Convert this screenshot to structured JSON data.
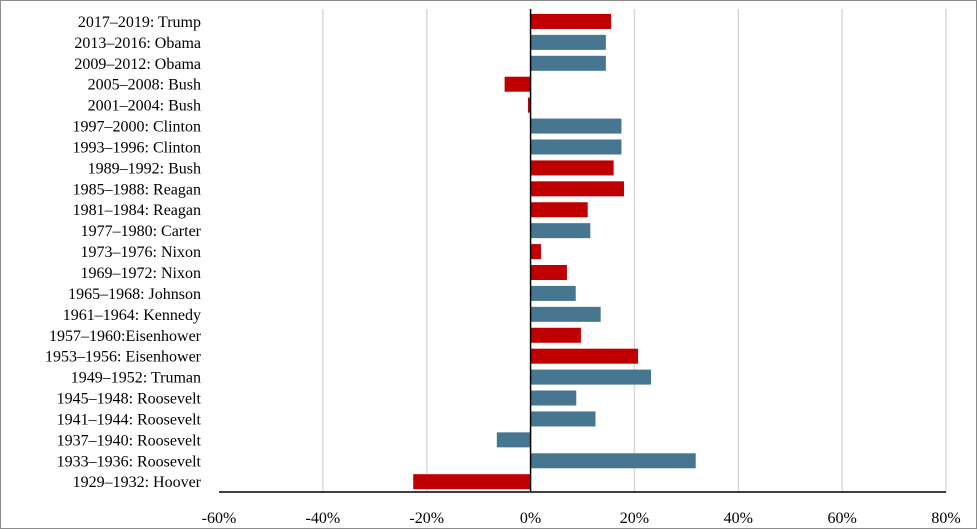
{
  "chart_data": {
    "type": "bar",
    "orientation": "horizontal",
    "title": "",
    "xlabel": "",
    "ylabel": "",
    "categories": [
      "2017–2019:  Trump",
      "2013–2016:  Obama",
      "2009–2012:  Obama",
      "2005–2008:  Bush",
      "2001–2004:  Bush",
      "1997–2000:  Clinton",
      "1993–1996:  Clinton",
      "1989–1992:  Bush",
      "1985–1988:  Reagan",
      "1981–1984:  Reagan",
      "1977–1980:  Carter",
      "1973–1976:  Nixon",
      "1969–1972:  Nixon",
      "1965–1968:  Johnson",
      "1961–1964:  Kennedy",
      "1957–1960:Eisenhower",
      "1953–1956:  Eisenhower",
      "1949–1952:  Truman",
      "1945–1948:  Roosevelt",
      "1941–1944:  Roosevelt",
      "1937–1940:  Roosevelt",
      "1933–1936:  Roosevelt",
      "1929–1932:  Hoover"
    ],
    "values": [
      15.5,
      14.5,
      14.5,
      -5,
      -0.5,
      17.5,
      17.5,
      16,
      18,
      11,
      11.5,
      2,
      7,
      8.7,
      13.5,
      9.7,
      20.7,
      23.2,
      8.8,
      12.5,
      -6.5,
      31.8,
      -22.6
    ],
    "party": [
      "R",
      "D",
      "D",
      "R",
      "R",
      "D",
      "D",
      "R",
      "R",
      "R",
      "D",
      "R",
      "R",
      "D",
      "D",
      "R",
      "R",
      "D",
      "D",
      "D",
      "D",
      "D",
      "R"
    ],
    "colors": {
      "R": "#c00000",
      "D": "#467690"
    },
    "xlim": [
      -60,
      80
    ],
    "ticks": [
      -60,
      -40,
      -20,
      0,
      20,
      40,
      60,
      80
    ],
    "tick_labels": [
      "-60%",
      "-40%",
      "-20%",
      "0%",
      "20%",
      "40%",
      "60%",
      "80%"
    ],
    "grid": true,
    "legend": "none"
  }
}
